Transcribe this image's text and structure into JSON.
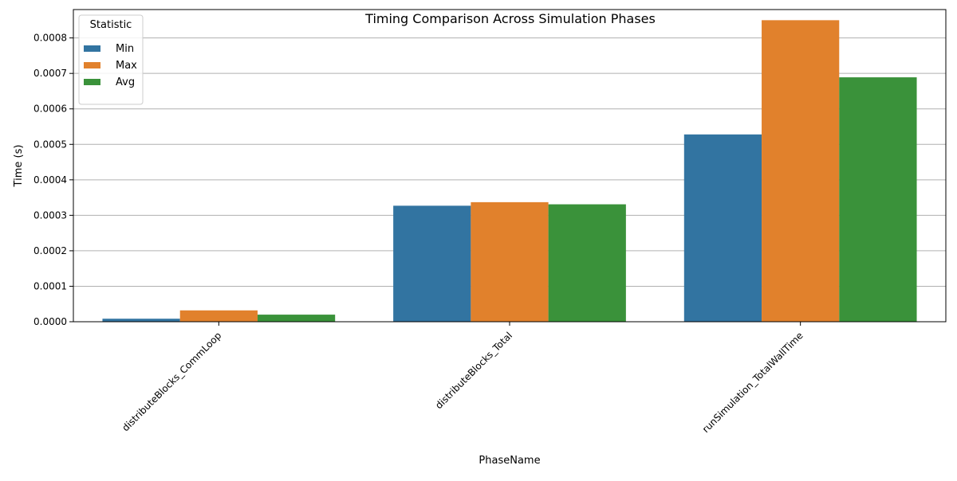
{
  "chart_data": {
    "type": "bar",
    "title": "Timing Comparison Across Simulation Phases",
    "xlabel": "PhaseName",
    "ylabel": "Time (s)",
    "categories": [
      "distributeBlocks_CommLoop",
      "distributeBlocks_Total",
      "runSimulation_TotalWallTime"
    ],
    "series": [
      {
        "name": "Min",
        "color": "#3274a1",
        "values": [
          8.5e-06,
          0.000327,
          0.000528
        ]
      },
      {
        "name": "Max",
        "color": "#e1812c",
        "values": [
          3.2e-05,
          0.000337,
          0.00085
        ]
      },
      {
        "name": "Avg",
        "color": "#3a923a",
        "values": [
          2e-05,
          0.000331,
          0.000689
        ]
      }
    ],
    "ylim": [
      0,
      0.00088
    ],
    "yticks": [
      0,
      0.0001,
      0.0002,
      0.0003,
      0.0004,
      0.0005,
      0.0006,
      0.0007,
      0.0008
    ],
    "ytick_labels": [
      "0.0000",
      "0.0001",
      "0.0002",
      "0.0003",
      "0.0004",
      "0.0005",
      "0.0006",
      "0.0007",
      "0.0008"
    ],
    "grid": "y",
    "legend": {
      "title": "Statistic",
      "placement": "top-left"
    }
  }
}
